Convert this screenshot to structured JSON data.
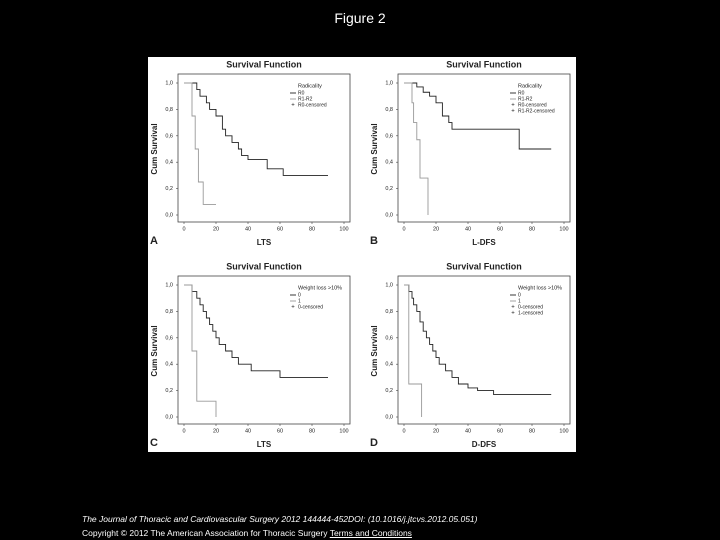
{
  "header": {
    "title": "Figure 2"
  },
  "chart_data": [
    {
      "type": "step",
      "panel": "A",
      "title": "Survival Function",
      "xlabel": "LTS",
      "ylabel": "Cum Survival",
      "legend_title": "Radicality",
      "censored_labels": [
        "R0-censored"
      ],
      "xlim": [
        0,
        100
      ],
      "xticks": [
        0,
        20,
        40,
        60,
        80,
        100
      ],
      "ylim": [
        0,
        1
      ],
      "yticks": [
        {
          "value": 0,
          "label": "0,0"
        },
        {
          "value": 0.2,
          "label": "0,2"
        },
        {
          "value": 0.4,
          "label": "0,4"
        },
        {
          "value": 0.6,
          "label": "0,6"
        },
        {
          "value": 0.8,
          "label": "0,8"
        },
        {
          "value": 1,
          "label": "1,0"
        }
      ],
      "series": [
        {
          "name": "R0",
          "color": "#222222",
          "x": [
            0,
            8,
            10,
            14,
            16,
            20,
            24,
            26,
            30,
            34,
            36,
            40,
            52,
            62,
            90
          ],
          "values": [
            1,
            0.95,
            0.9,
            0.85,
            0.8,
            0.75,
            0.65,
            0.6,
            0.55,
            0.5,
            0.45,
            0.42,
            0.35,
            0.3,
            0.3
          ]
        },
        {
          "name": "R1-R2",
          "color": "#999999",
          "x": [
            0,
            5,
            7,
            9,
            12,
            20
          ],
          "values": [
            1,
            0.75,
            0.5,
            0.25,
            0.08,
            0.08
          ]
        }
      ]
    },
    {
      "type": "step",
      "panel": "B",
      "title": "Survival Function",
      "xlabel": "L-DFS",
      "ylabel": "Cum Survival",
      "legend_title": "Radicality",
      "censored_labels": [
        "R0-censored",
        "R1-R2-censored"
      ],
      "xlim": [
        0,
        100
      ],
      "xticks": [
        0,
        20,
        40,
        60,
        80,
        100
      ],
      "ylim": [
        0,
        1
      ],
      "yticks": [
        {
          "value": 0,
          "label": "0,0"
        },
        {
          "value": 0.2,
          "label": "0,2"
        },
        {
          "value": 0.4,
          "label": "0,4"
        },
        {
          "value": 0.6,
          "label": "0,6"
        },
        {
          "value": 0.8,
          "label": "0,8"
        },
        {
          "value": 1,
          "label": "1,0"
        }
      ],
      "series": [
        {
          "name": "R0",
          "color": "#222222",
          "x": [
            0,
            8,
            12,
            16,
            20,
            24,
            28,
            30,
            72,
            92
          ],
          "values": [
            1,
            0.97,
            0.93,
            0.9,
            0.85,
            0.75,
            0.7,
            0.65,
            0.5,
            0.5
          ]
        },
        {
          "name": "R1-R2",
          "color": "#999999",
          "x": [
            0,
            5,
            6,
            8,
            10,
            15
          ],
          "values": [
            1,
            0.85,
            0.7,
            0.57,
            0.28,
            0
          ]
        }
      ]
    },
    {
      "type": "step",
      "panel": "C",
      "title": "Survival Function",
      "xlabel": "LTS",
      "ylabel": "Cum Survival",
      "legend_title": "Weight loss >10%",
      "censored_labels": [
        "0-censored"
      ],
      "xlim": [
        0,
        100
      ],
      "xticks": [
        0,
        20,
        40,
        60,
        80,
        100
      ],
      "ylim": [
        0,
        1
      ],
      "yticks": [
        {
          "value": 0,
          "label": "0,0"
        },
        {
          "value": 0.2,
          "label": "0,2"
        },
        {
          "value": 0.4,
          "label": "0,4"
        },
        {
          "value": 0.6,
          "label": "0,6"
        },
        {
          "value": 0.8,
          "label": "0,8"
        },
        {
          "value": 1,
          "label": "1,0"
        }
      ],
      "series": [
        {
          "name": "0",
          "color": "#222222",
          "x": [
            0,
            5,
            8,
            10,
            12,
            14,
            16,
            18,
            20,
            22,
            26,
            30,
            34,
            42,
            60,
            90
          ],
          "values": [
            1,
            0.95,
            0.9,
            0.85,
            0.8,
            0.75,
            0.7,
            0.65,
            0.6,
            0.55,
            0.5,
            0.45,
            0.4,
            0.35,
            0.3,
            0.3
          ]
        },
        {
          "name": "1",
          "color": "#999999",
          "x": [
            0,
            5,
            8,
            19,
            20
          ],
          "values": [
            1,
            0.5,
            0.12,
            0.12,
            0
          ]
        }
      ]
    },
    {
      "type": "step",
      "panel": "D",
      "title": "Survival Function",
      "xlabel": "D-DFS",
      "ylabel": "Cum Survival",
      "legend_title": "Weight loss >10%",
      "censored_labels": [
        "0-censored",
        "1-censored"
      ],
      "xlim": [
        0,
        100
      ],
      "xticks": [
        0,
        20,
        40,
        60,
        80,
        100
      ],
      "ylim": [
        0,
        1
      ],
      "yticks": [
        {
          "value": 0,
          "label": "0,0"
        },
        {
          "value": 0.2,
          "label": "0,2"
        },
        {
          "value": 0.4,
          "label": "0,4"
        },
        {
          "value": 0.6,
          "label": "0,6"
        },
        {
          "value": 0.8,
          "label": "0,8"
        },
        {
          "value": 1,
          "label": "1,0"
        }
      ],
      "series": [
        {
          "name": "0",
          "color": "#222222",
          "x": [
            0,
            3,
            5,
            6,
            8,
            10,
            12,
            14,
            16,
            18,
            20,
            22,
            26,
            30,
            34,
            40,
            46,
            56,
            92
          ],
          "values": [
            1,
            0.95,
            0.9,
            0.85,
            0.8,
            0.72,
            0.65,
            0.6,
            0.55,
            0.5,
            0.45,
            0.4,
            0.35,
            0.3,
            0.25,
            0.22,
            0.2,
            0.17,
            0.17
          ]
        },
        {
          "name": "1",
          "color": "#999999",
          "x": [
            0,
            3,
            10,
            11
          ],
          "values": [
            1,
            0.25,
            0.25,
            0
          ]
        }
      ]
    }
  ],
  "footer": {
    "citation": "The Journal of Thoracic and Cardiovascular Surgery 2012 144444-452DOI: (10.1016/j.jtcvs.2012.05.051)",
    "copyright": "Copyright © 2012 The American Association for Thoracic Surgery",
    "link": "Terms and Conditions"
  }
}
